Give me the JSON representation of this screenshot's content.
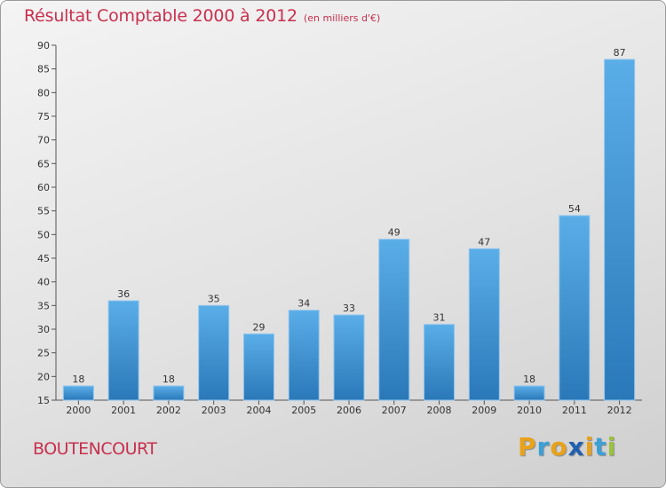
{
  "header": {
    "title": "Résultat Comptable 2000 à 2012",
    "subtitle": "(en milliers d'€)"
  },
  "commune": "BOUTENCOURT",
  "logo": {
    "letters": [
      "P",
      "r",
      "o",
      "x",
      "i",
      "t",
      "i"
    ],
    "colors": [
      "#e8a21a",
      "#3aa0d8",
      "#e8a21a",
      "#1f5fb0",
      "#e8a21a",
      "#3aa0d8",
      "#9ac23c"
    ]
  },
  "chart_data": {
    "type": "bar",
    "title": "Résultat Comptable 2000 à 2012",
    "subtitle": "(en milliers d'€)",
    "categories": [
      "2000",
      "2001",
      "2002",
      "2003",
      "2004",
      "2005",
      "2006",
      "2007",
      "2008",
      "2009",
      "2010",
      "2011",
      "2012"
    ],
    "values": [
      18,
      36,
      18,
      35,
      29,
      34,
      33,
      49,
      31,
      47,
      18,
      54,
      87
    ],
    "ylim": [
      15,
      90
    ],
    "yticks": [
      15,
      20,
      25,
      30,
      35,
      40,
      45,
      50,
      55,
      60,
      65,
      70,
      75,
      80,
      85,
      90
    ],
    "grid": false,
    "colors": {
      "bar_top": "#5aaee8",
      "bar_bottom": "#2a78b8",
      "text": "#c8304e"
    }
  }
}
